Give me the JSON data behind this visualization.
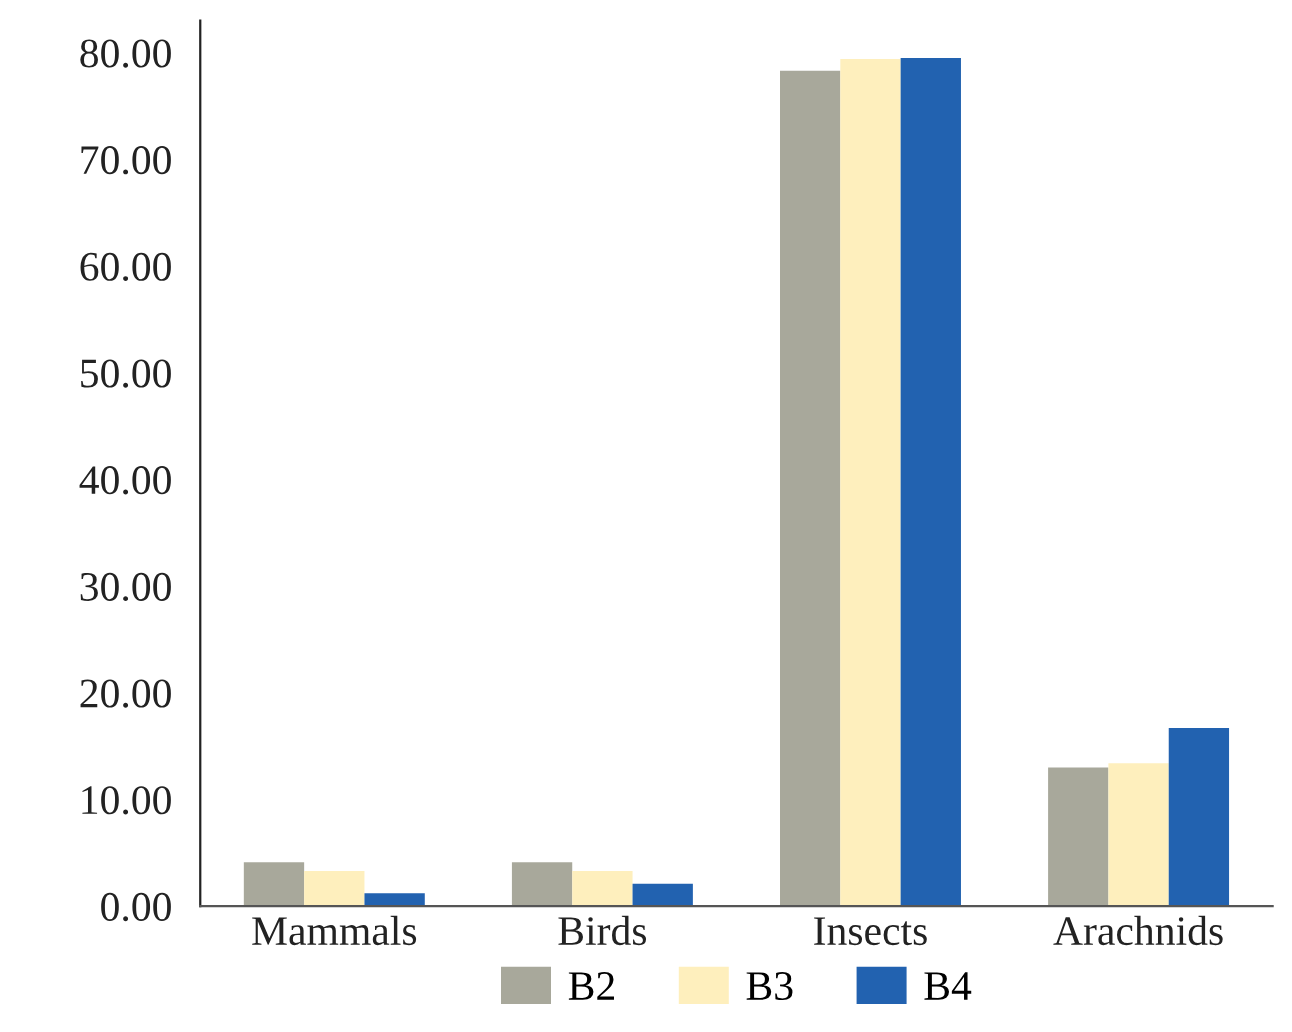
{
  "chart_data": {
    "type": "bar",
    "categories": [
      "Mammals",
      "Birds",
      "Insects",
      "Arachnids"
    ],
    "series": [
      {
        "name": "B2",
        "color": "#a8a89b",
        "values": [
          4.1,
          4.1,
          78.3,
          13.0
        ]
      },
      {
        "name": "B3",
        "color": "#feefbd",
        "values": [
          3.3,
          3.3,
          79.4,
          13.4
        ]
      },
      {
        "name": "B4",
        "color": "#2262b0",
        "values": [
          1.2,
          2.1,
          79.5,
          16.7
        ]
      }
    ],
    "ylim": [
      0,
      83
    ],
    "yticks": [
      {
        "value": 0,
        "label": "0.00"
      },
      {
        "value": 10,
        "label": "10.00"
      },
      {
        "value": 20,
        "label": "20.00"
      },
      {
        "value": 30,
        "label": "30.00"
      },
      {
        "value": 40,
        "label": "40.00"
      },
      {
        "value": 50,
        "label": "50.00"
      },
      {
        "value": 60,
        "label": "60.00"
      },
      {
        "value": 70,
        "label": "70.00"
      },
      {
        "value": 80,
        "label": "80.00"
      }
    ],
    "grid": false,
    "legend": "bottom"
  }
}
